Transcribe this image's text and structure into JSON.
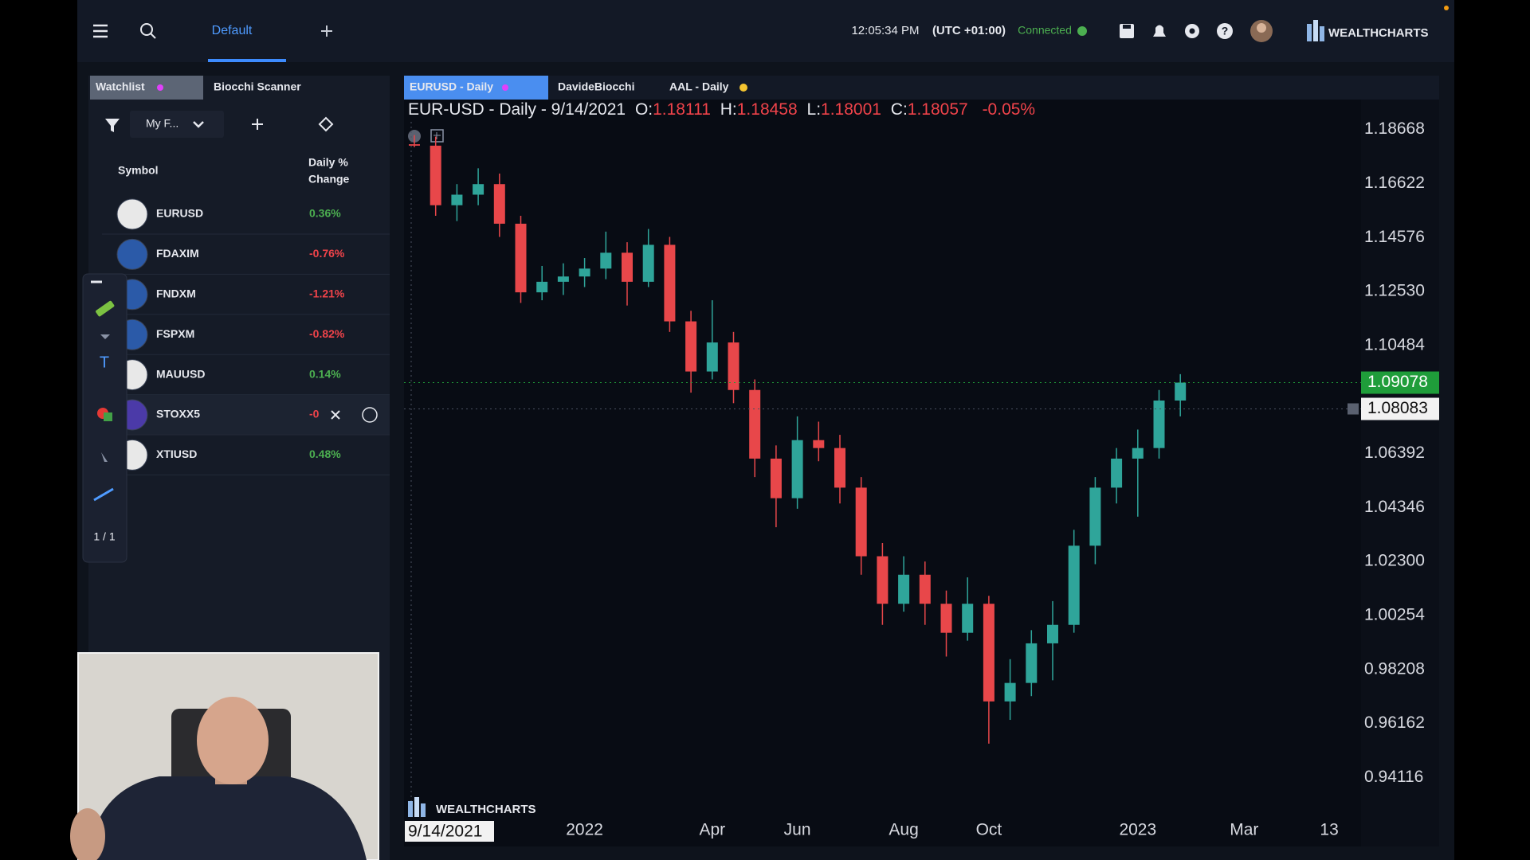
{
  "header": {
    "tab": "Default",
    "time": "12:05:34 PM",
    "timezone": "(UTC +01:00)",
    "status": "Connected",
    "brand": "WEALTHCHARTS"
  },
  "watchlist": {
    "tabs": [
      "Watchlist",
      "Biocchi Scanner"
    ],
    "list_name": "My F...",
    "columns": {
      "symbol": "Symbol",
      "change": [
        "Daily %",
        "Change"
      ]
    },
    "rows": [
      {
        "symbol": "EURUSD",
        "change": "0.36%"
      },
      {
        "symbol": "FDAXIM",
        "change": "-0.76%"
      },
      {
        "symbol": "FNDXM",
        "change": "-1.21%"
      },
      {
        "symbol": "FSPXM",
        "change": "-0.82%"
      },
      {
        "symbol": "MAUUSD",
        "change": "0.14%"
      },
      {
        "symbol": "STOXX5",
        "change": "-0"
      },
      {
        "symbol": "XTIUSD",
        "change": "0.48%"
      }
    ],
    "drawing_pages": "1 / 1"
  },
  "chart_tabs": [
    "EURUSD - Daily",
    "DavideBiocchi",
    "AAL - Daily"
  ],
  "chart_data": {
    "type": "candlestick",
    "title": "EUR-USD - Daily - 9/14/2021",
    "ohlc_labels": [
      "O:",
      "H:",
      "L:",
      "C:"
    ],
    "change_label": "-0.05%",
    "categories": [
      "9/14/2021",
      null,
      null,
      null,
      null,
      null,
      null,
      null,
      "2022",
      null,
      null,
      null,
      null,
      null,
      "Apr",
      null,
      null,
      null,
      "Jun",
      null,
      null,
      null,
      null,
      "Aug",
      null,
      null,
      null,
      "Oct",
      null,
      null,
      null,
      null,
      null,
      null,
      "2023",
      null,
      null,
      null,
      null,
      "Mar",
      null,
      null,
      null,
      "13"
    ],
    "open": [
      1.18111,
      1.18057,
      1.158,
      1.162,
      1.166,
      1.151,
      1.125,
      1.129,
      1.131,
      1.134,
      1.14,
      1.129,
      1.143,
      1.114,
      1.095,
      1.106,
      1.088,
      1.062,
      1.047,
      1.069,
      1.066,
      1.051,
      1.025,
      1.007,
      1.018,
      1.007,
      0.996,
      1.007,
      0.97,
      0.977,
      0.992,
      0.999,
      1.029,
      1.051,
      1.062,
      1.066,
      1.084,
      null,
      null,
      null,
      null,
      null,
      null,
      null
    ],
    "high": [
      1.18458,
      1.184,
      1.166,
      1.172,
      1.17,
      1.154,
      1.135,
      1.136,
      1.138,
      1.148,
      1.144,
      1.149,
      1.146,
      1.118,
      1.122,
      1.11,
      1.092,
      1.067,
      1.078,
      1.076,
      1.071,
      1.055,
      1.03,
      1.025,
      1.023,
      1.012,
      1.017,
      1.01,
      0.986,
      0.997,
      1.008,
      1.035,
      1.055,
      1.066,
      1.073,
      1.088,
      1.094,
      null,
      null,
      null,
      null,
      null,
      null,
      null
    ],
    "low": [
      1.18001,
      1.154,
      1.152,
      1.158,
      1.146,
      1.121,
      1.122,
      1.124,
      1.127,
      1.13,
      1.12,
      1.127,
      1.11,
      1.087,
      1.092,
      1.083,
      1.055,
      1.036,
      1.043,
      1.061,
      1.045,
      1.018,
      0.999,
      1.004,
      0.999,
      0.987,
      0.993,
      0.954,
      0.963,
      0.972,
      0.978,
      0.996,
      1.022,
      1.045,
      1.04,
      1.062,
      1.078,
      null,
      null,
      null,
      null,
      null,
      null,
      null
    ],
    "close": [
      1.18057,
      1.158,
      1.162,
      1.166,
      1.151,
      1.125,
      1.129,
      1.131,
      1.134,
      1.14,
      1.129,
      1.143,
      1.114,
      1.095,
      1.106,
      1.088,
      1.062,
      1.047,
      1.069,
      1.066,
      1.051,
      1.025,
      1.007,
      1.018,
      1.007,
      0.996,
      1.007,
      0.97,
      0.977,
      0.992,
      0.999,
      1.029,
      1.051,
      1.062,
      1.066,
      1.084,
      1.09078,
      null,
      null,
      null,
      null,
      null,
      null,
      null
    ],
    "up_color": "#2fa59a",
    "down_color": "#e8474a",
    "crosshair_price": 1.08083,
    "ylim": [
      0.9253,
      1.1896
    ],
    "yticks": [
      1.18668,
      1.16622,
      1.14576,
      {
        "value": 1.1253,
        "label": "1.12530"
      },
      1.10484,
      1.06392,
      1.04346,
      {
        "value": 1.023,
        "label": "1.02300"
      },
      1.00254,
      0.98208,
      0.96162,
      0.94116
    ]
  }
}
